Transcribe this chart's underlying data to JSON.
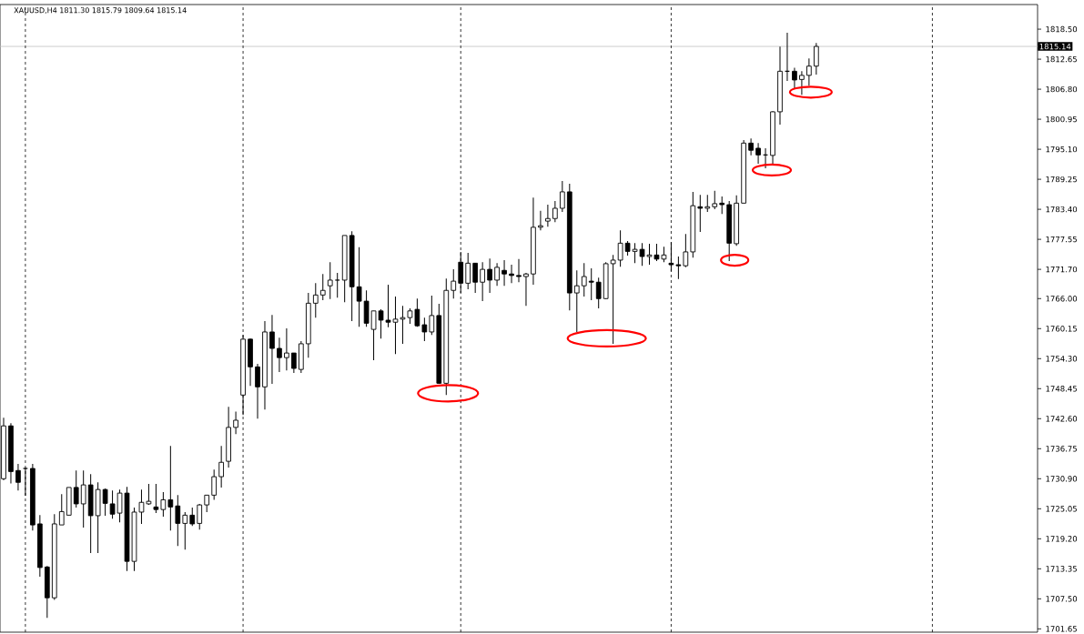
{
  "chart_data": {
    "type": "candlestick",
    "title": "XAUUSD,H4  1811.30 1815.79 1809.64 1815.14",
    "categories": [
      null,
      null,
      null,
      null,
      null,
      null,
      null,
      null,
      null,
      null,
      null,
      null,
      null,
      null,
      null,
      null,
      null,
      null,
      null,
      null,
      null,
      null,
      null,
      null,
      null,
      null,
      null,
      null,
      null,
      null,
      null,
      null,
      null,
      null,
      null,
      null,
      null,
      null,
      null,
      null,
      null,
      null,
      null,
      null,
      null,
      null,
      null,
      null,
      null,
      null,
      null,
      null,
      null,
      null,
      null,
      null,
      null,
      null,
      null,
      null,
      null,
      null,
      null,
      null,
      null,
      null,
      null,
      null,
      null,
      null,
      null,
      null,
      null,
      null,
      null,
      null,
      null,
      null,
      null,
      null,
      null,
      null,
      null,
      null,
      null,
      null,
      null,
      null,
      null,
      null,
      null,
      null,
      null,
      null,
      null,
      null,
      null,
      null,
      null,
      null,
      null,
      null,
      null,
      null,
      null,
      null,
      null,
      null,
      null,
      null,
      null,
      null,
      null,
      null,
      null,
      null,
      null,
      null,
      null,
      null,
      null,
      null,
      null,
      null,
      null,
      null,
      null,
      null,
      null,
      null,
      null,
      null,
      null,
      null,
      null,
      null,
      null,
      null,
      null,
      null,
      null,
      null,
      null
    ],
    "ohlc": [
      [
        1730.9,
        1742.8,
        1730.6,
        1741.2
      ],
      [
        1741.2,
        1741.7,
        1730.0,
        1732.3
      ],
      [
        1732.5,
        1733.8,
        1728.6,
        1730.2
      ],
      [
        1732.9,
        1733.1,
        1727.6,
        1732.9
      ],
      [
        1732.9,
        1733.8,
        1720.8,
        1721.9
      ],
      [
        1722.1,
        1723.8,
        1711.8,
        1713.6
      ],
      [
        1713.7,
        1713.9,
        1703.8,
        1707.7
      ],
      [
        1707.7,
        1724.0,
        1707.3,
        1722.1
      ],
      [
        1721.9,
        1727.9,
        1721.9,
        1724.5
      ],
      [
        1723.8,
        1729.2,
        1723.8,
        1729.2
      ],
      [
        1729.2,
        1732.5,
        1725.3,
        1726.0
      ],
      [
        1726.0,
        1732.5,
        1721.4,
        1729.7
      ],
      [
        1729.7,
        1731.8,
        1716.4,
        1723.7
      ],
      [
        1723.7,
        1730.2,
        1716.4,
        1728.8
      ],
      [
        1728.8,
        1729.0,
        1723.7,
        1726.1
      ],
      [
        1726.0,
        1728.6,
        1723.1,
        1724.0
      ],
      [
        1724.2,
        1728.8,
        1722.4,
        1728.1
      ],
      [
        1728.1,
        1729.3,
        1712.9,
        1714.8
      ],
      [
        1714.8,
        1725.3,
        1712.9,
        1724.4
      ],
      [
        1724.4,
        1728.8,
        1722.1,
        1726.3
      ],
      [
        1726.0,
        1729.9,
        1725.8,
        1726.5
      ],
      [
        1725.4,
        1729.9,
        1724.2,
        1724.9
      ],
      [
        1724.9,
        1728.3,
        1723.5,
        1726.8
      ],
      [
        1726.8,
        1737.3,
        1720.8,
        1725.4
      ],
      [
        1725.6,
        1727.7,
        1717.8,
        1722.2
      ],
      [
        1722.2,
        1724.4,
        1717.1,
        1723.8
      ],
      [
        1723.8,
        1725.3,
        1721.7,
        1722.1
      ],
      [
        1722.2,
        1726.0,
        1721.0,
        1725.8
      ],
      [
        1725.8,
        1727.7,
        1724.4,
        1727.7
      ],
      [
        1727.7,
        1732.7,
        1726.8,
        1731.3
      ],
      [
        1731.3,
        1737.3,
        1729.2,
        1734.1
      ],
      [
        1734.3,
        1744.9,
        1733.1,
        1740.9
      ],
      [
        1740.9,
        1744.0,
        1739.6,
        1742.3
      ],
      [
        1747.2,
        1758.9,
        1743.3,
        1758.1
      ],
      [
        1758.1,
        1758.2,
        1749.0,
        1752.7
      ],
      [
        1752.7,
        1753.3,
        1742.6,
        1748.8
      ],
      [
        1748.8,
        1761.6,
        1744.4,
        1759.5
      ],
      [
        1759.5,
        1762.8,
        1749.4,
        1756.3
      ],
      [
        1756.3,
        1758.4,
        1751.7,
        1754.5
      ],
      [
        1754.5,
        1760.2,
        1752.0,
        1755.4
      ],
      [
        1755.4,
        1755.4,
        1751.5,
        1752.4
      ],
      [
        1752.2,
        1757.7,
        1751.5,
        1757.2
      ],
      [
        1757.2,
        1767.1,
        1754.5,
        1765.1
      ],
      [
        1765.1,
        1769.0,
        1762.3,
        1766.7
      ],
      [
        1766.7,
        1770.8,
        1765.7,
        1767.6
      ],
      [
        1768.5,
        1773.1,
        1765.9,
        1769.6
      ],
      [
        1769.6,
        1771.0,
        1766.2,
        1769.6
      ],
      [
        1769.6,
        1778.3,
        1765.3,
        1778.3
      ],
      [
        1778.3,
        1779.1,
        1761.6,
        1768.3
      ],
      [
        1768.3,
        1776.0,
        1760.5,
        1765.5
      ],
      [
        1765.5,
        1767.6,
        1760.5,
        1761.2
      ],
      [
        1760.0,
        1763.6,
        1754.0,
        1763.6
      ],
      [
        1763.6,
        1763.9,
        1758.2,
        1761.8
      ],
      [
        1761.8,
        1768.7,
        1760.4,
        1761.4
      ],
      [
        1761.4,
        1766.4,
        1755.2,
        1762.0
      ],
      [
        1762.0,
        1764.6,
        1757.2,
        1762.3
      ],
      [
        1762.3,
        1764.1,
        1761.1,
        1763.6
      ],
      [
        1763.9,
        1766.0,
        1760.5,
        1760.7
      ],
      [
        1760.9,
        1762.3,
        1757.7,
        1759.5
      ],
      [
        1759.5,
        1766.6,
        1758.9,
        1762.7
      ],
      [
        1762.7,
        1765.0,
        1749.4,
        1749.5
      ],
      [
        1749.5,
        1769.9,
        1747.2,
        1767.6
      ],
      [
        1767.6,
        1771.7,
        1766.0,
        1769.4
      ],
      [
        1773.1,
        1775.1,
        1767.1,
        1769.0
      ],
      [
        1769.0,
        1774.9,
        1767.8,
        1772.9
      ],
      [
        1772.9,
        1772.9,
        1767.1,
        1769.2
      ],
      [
        1769.2,
        1773.1,
        1765.5,
        1771.7
      ],
      [
        1771.7,
        1773.8,
        1767.1,
        1769.6
      ],
      [
        1769.6,
        1772.9,
        1768.5,
        1772.1
      ],
      [
        1771.5,
        1773.5,
        1768.5,
        1770.8
      ],
      [
        1770.8,
        1772.6,
        1769.0,
        1770.5
      ],
      [
        1770.5,
        1773.7,
        1769.2,
        1770.3
      ],
      [
        1770.3,
        1771.0,
        1764.6,
        1770.8
      ],
      [
        1770.8,
        1785.7,
        1768.7,
        1779.9
      ],
      [
        1779.9,
        1783.1,
        1779.3,
        1780.2
      ],
      [
        1781.1,
        1784.3,
        1780.0,
        1781.6
      ],
      [
        1781.6,
        1785.0,
        1780.9,
        1783.6
      ],
      [
        1783.6,
        1788.9,
        1782.9,
        1786.8
      ],
      [
        1786.8,
        1788.4,
        1763.7,
        1767.1
      ],
      [
        1767.1,
        1771.5,
        1759.5,
        1768.5
      ],
      [
        1768.5,
        1772.9,
        1766.4,
        1770.3
      ],
      [
        1769.4,
        1771.9,
        1765.7,
        1769.2
      ],
      [
        1769.2,
        1770.1,
        1764.1,
        1766.0
      ],
      [
        1766.0,
        1773.1,
        1765.9,
        1772.8
      ],
      [
        1772.8,
        1774.5,
        1757.2,
        1773.5
      ],
      [
        1773.5,
        1779.3,
        1772.2,
        1776.8
      ],
      [
        1776.8,
        1777.2,
        1774.4,
        1775.2
      ],
      [
        1775.2,
        1776.8,
        1772.9,
        1775.6
      ],
      [
        1775.6,
        1776.8,
        1772.4,
        1774.2
      ],
      [
        1774.2,
        1776.7,
        1772.6,
        1774.5
      ],
      [
        1774.5,
        1776.7,
        1773.3,
        1773.7
      ],
      [
        1773.7,
        1776.1,
        1773.1,
        1774.5
      ],
      [
        1772.9,
        1777.0,
        1771.3,
        1772.6
      ],
      [
        1772.6,
        1774.2,
        1769.8,
        1772.4
      ],
      [
        1772.4,
        1778.6,
        1772.1,
        1775.1
      ],
      [
        1775.1,
        1786.8,
        1774.0,
        1784.1
      ],
      [
        1783.9,
        1786.2,
        1779.0,
        1783.6
      ],
      [
        1783.6,
        1786.2,
        1782.9,
        1783.9
      ],
      [
        1783.9,
        1787.0,
        1783.4,
        1784.5
      ],
      [
        1784.6,
        1785.9,
        1782.5,
        1784.3
      ],
      [
        1784.3,
        1785.0,
        1773.3,
        1776.8
      ],
      [
        1776.7,
        1786.1,
        1776.3,
        1784.6
      ],
      [
        1784.6,
        1796.9,
        1784.6,
        1796.3
      ],
      [
        1796.3,
        1797.2,
        1793.9,
        1794.9
      ],
      [
        1795.3,
        1796.3,
        1792.3,
        1794.0
      ],
      [
        1794.0,
        1795.3,
        1791.4,
        1794.0
      ],
      [
        1793.9,
        1802.5,
        1792.3,
        1802.4
      ],
      [
        1802.4,
        1815.1,
        1799.9,
        1810.3
      ],
      [
        1810.3,
        1817.8,
        1808.4,
        1810.3
      ],
      [
        1810.3,
        1811.0,
        1807.0,
        1808.6
      ],
      [
        1808.7,
        1810.3,
        1805.7,
        1809.5
      ],
      [
        1809.5,
        1812.8,
        1807.5,
        1811.3
      ],
      [
        1811.3,
        1815.79,
        1809.64,
        1815.14
      ],
      null,
      null,
      null,
      null,
      null,
      null,
      null,
      null,
      null,
      null,
      null,
      null,
      null,
      null,
      null,
      null,
      null,
      null,
      null,
      null,
      null,
      null,
      null,
      null,
      null,
      null,
      null,
      null,
      null,
      null
    ],
    "ylim": [
      1701.0,
      1823.3
    ],
    "yticks": [
      {
        "value": 1818.5,
        "label": "1818.50"
      },
      {
        "value": 1812.65,
        "label": "1812.65"
      },
      {
        "value": 1806.8,
        "label": "1806.80"
      },
      {
        "value": 1800.95,
        "label": "1800.95"
      },
      {
        "value": 1795.1,
        "label": "1795.10"
      },
      {
        "value": 1789.25,
        "label": "1789.25"
      },
      {
        "value": 1783.4,
        "label": "1783.40"
      },
      {
        "value": 1777.55,
        "label": "1777.55"
      },
      {
        "value": 1771.7,
        "label": "1771.70"
      },
      {
        "value": 1766.0,
        "label": "1766.00"
      },
      {
        "value": 1760.15,
        "label": "1760.15"
      },
      {
        "value": 1754.3,
        "label": "1754.30"
      },
      {
        "value": 1748.45,
        "label": "1748.45"
      },
      {
        "value": 1742.6,
        "label": "1742.60"
      },
      {
        "value": 1736.75,
        "label": "1736.75"
      },
      {
        "value": 1730.9,
        "label": "1730.90"
      },
      {
        "value": 1725.05,
        "label": "1725.05"
      },
      {
        "value": 1719.2,
        "label": "1719.20"
      },
      {
        "value": 1713.35,
        "label": "1713.35"
      },
      {
        "value": 1707.5,
        "label": "1707.50"
      },
      {
        "value": 1701.65,
        "label": "1701.65"
      }
    ],
    "tick_labels": "y",
    "ref_lines": [
      {
        "axis": "y",
        "value": 1815.14,
        "label": "1815.14",
        "color": "#c0c0c0"
      }
    ]
  }
}
